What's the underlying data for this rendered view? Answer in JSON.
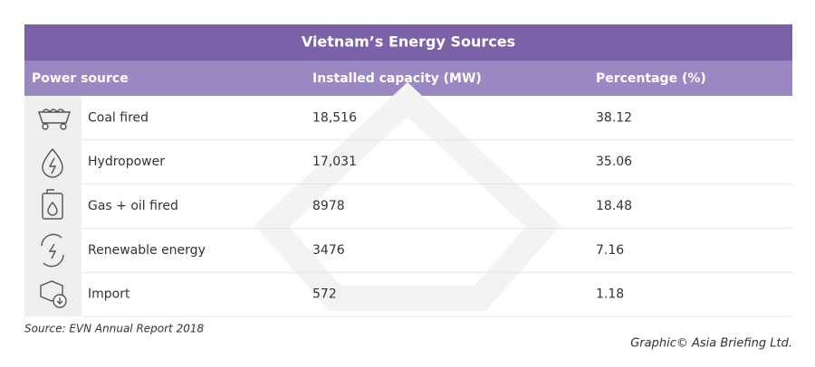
{
  "header": {
    "title": "Vietnam’s Energy Sources"
  },
  "table": {
    "columns": [
      "Power source",
      "Installed capacity (MW)",
      "Percentage (%)"
    ],
    "rows": [
      [
        "Coal fired",
        "18,516",
        "38.12"
      ],
      [
        "Hydropower",
        "17,031",
        "35.06"
      ],
      [
        "Gas + oil fired",
        "8978",
        "18.48"
      ],
      [
        "Renewable energy",
        "3476",
        "7.16"
      ],
      [
        "Import",
        "572",
        "1.18"
      ]
    ]
  },
  "footer": {
    "source": "Source: EVN Annual Report 2018",
    "credit": "Graphic© Asia Briefing Ltd."
  }
}
